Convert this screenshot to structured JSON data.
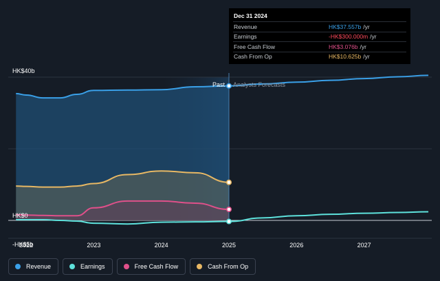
{
  "chart_data": {
    "type": "line",
    "x": [
      2021.85,
      2022.0,
      2022.25,
      2022.5,
      2022.75,
      2023.0,
      2023.5,
      2024.0,
      2024.5,
      2025.0
    ],
    "series": [
      {
        "name": "Revenue",
        "color": "#3aa0e8",
        "values": [
          35.4,
          35.0,
          34.2,
          34.2,
          35.2,
          36.3,
          36.4,
          36.5,
          37.3,
          37.557
        ]
      },
      {
        "name": "Earnings",
        "color": "#5ee2dc",
        "values": [
          0.2,
          0.2,
          0.2,
          0.0,
          -0.2,
          -0.8,
          -1.0,
          -0.5,
          -0.4,
          -0.3
        ]
      },
      {
        "name": "Free Cash Flow",
        "color": "#e0508a",
        "values": [
          1.6,
          1.5,
          1.4,
          1.3,
          1.3,
          3.5,
          5.4,
          5.4,
          4.8,
          3.076
        ]
      },
      {
        "name": "Cash From Op",
        "color": "#e8b864",
        "values": [
          9.6,
          9.5,
          9.3,
          9.3,
          9.6,
          10.3,
          12.8,
          13.8,
          13.3,
          10.625
        ]
      }
    ],
    "forecast": {
      "x": [
        2025.0,
        2025.5,
        2026.0,
        2026.5,
        2027.0,
        2027.5,
        2027.95
      ],
      "series": [
        {
          "name": "Revenue",
          "values": [
            37.557,
            38.1,
            38.6,
            39.1,
            39.6,
            40.1,
            40.5
          ]
        },
        {
          "name": "Earnings",
          "values": [
            -0.3,
            0.7,
            1.3,
            1.7,
            2.0,
            2.2,
            2.4
          ]
        }
      ]
    },
    "xlim": [
      2021.75,
      2027.95
    ],
    "ylim": [
      -5,
      40
    ],
    "y_ticks": [
      {
        "value": 40,
        "label": "HK$40b"
      },
      {
        "value": 0,
        "label": "HK$0"
      },
      {
        "value": -5,
        "label": "-HK$5b"
      }
    ],
    "x_ticks": [
      {
        "value": 2022,
        "label": "2022"
      },
      {
        "value": 2023,
        "label": "2023"
      },
      {
        "value": 2024,
        "label": "2024"
      },
      {
        "value": 2025,
        "label": "2025"
      },
      {
        "value": 2026,
        "label": "2026"
      },
      {
        "value": 2027,
        "label": "2027"
      }
    ],
    "divider_x": 2025.0,
    "past_label": "Past",
    "forecast_label": "Analysts Forecasts",
    "grid": true,
    "legend_position": "bottom"
  },
  "tooltip": {
    "date": "Dec 31 2024",
    "unit": "/yr",
    "rows": [
      {
        "label": "Revenue",
        "value": "HK$37.557b",
        "color": "#3aa0e8"
      },
      {
        "label": "Earnings",
        "value": "-HK$300.000m",
        "color": "#ff4a5c"
      },
      {
        "label": "Free Cash Flow",
        "value": "HK$3.076b",
        "color": "#e0508a"
      },
      {
        "label": "Cash From Op",
        "value": "HK$10.625b",
        "color": "#e8b864"
      }
    ]
  },
  "legend": [
    {
      "label": "Revenue",
      "color": "#3aa0e8"
    },
    {
      "label": "Earnings",
      "color": "#5ee2dc"
    },
    {
      "label": "Free Cash Flow",
      "color": "#e0508a"
    },
    {
      "label": "Cash From Op",
      "color": "#e8b864"
    }
  ]
}
